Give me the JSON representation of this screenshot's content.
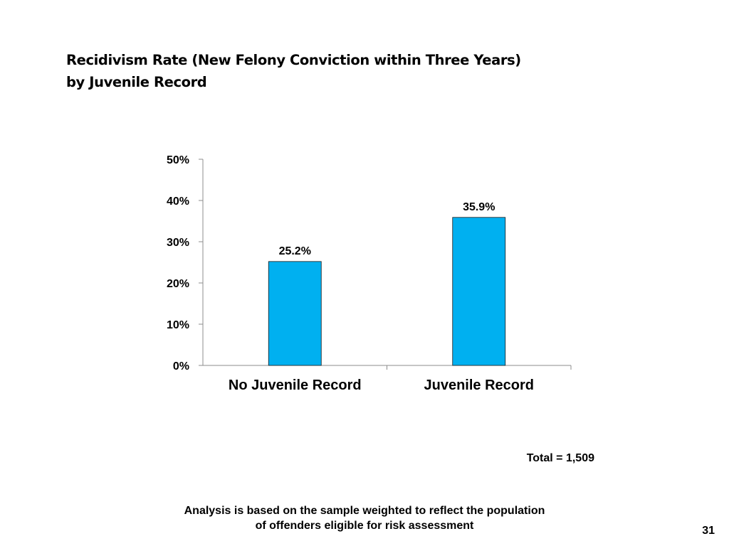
{
  "title": {
    "line1": "Recidivism Rate (New Felony Conviction within Three Years)",
    "line2": "by Juvenile Record"
  },
  "chart_data": {
    "type": "bar",
    "categories": [
      "No Juvenile Record",
      "Juvenile Record"
    ],
    "values": [
      25.2,
      35.9
    ],
    "value_labels": [
      "25.2%",
      "35.9%"
    ],
    "ylim": [
      0,
      50
    ],
    "yticks": [
      0,
      10,
      20,
      30,
      40,
      50
    ],
    "ytick_labels": [
      "0%",
      "10%",
      "20%",
      "30%",
      "40%",
      "50%"
    ],
    "bar_color": "#00b0f0",
    "grid": false,
    "legend": "none"
  },
  "total_note": "Total = 1,509",
  "footnote": {
    "line1": "Analysis is based on the sample weighted to reflect the population",
    "line2": "of offenders eligible for risk assessment"
  },
  "page_number": "31"
}
